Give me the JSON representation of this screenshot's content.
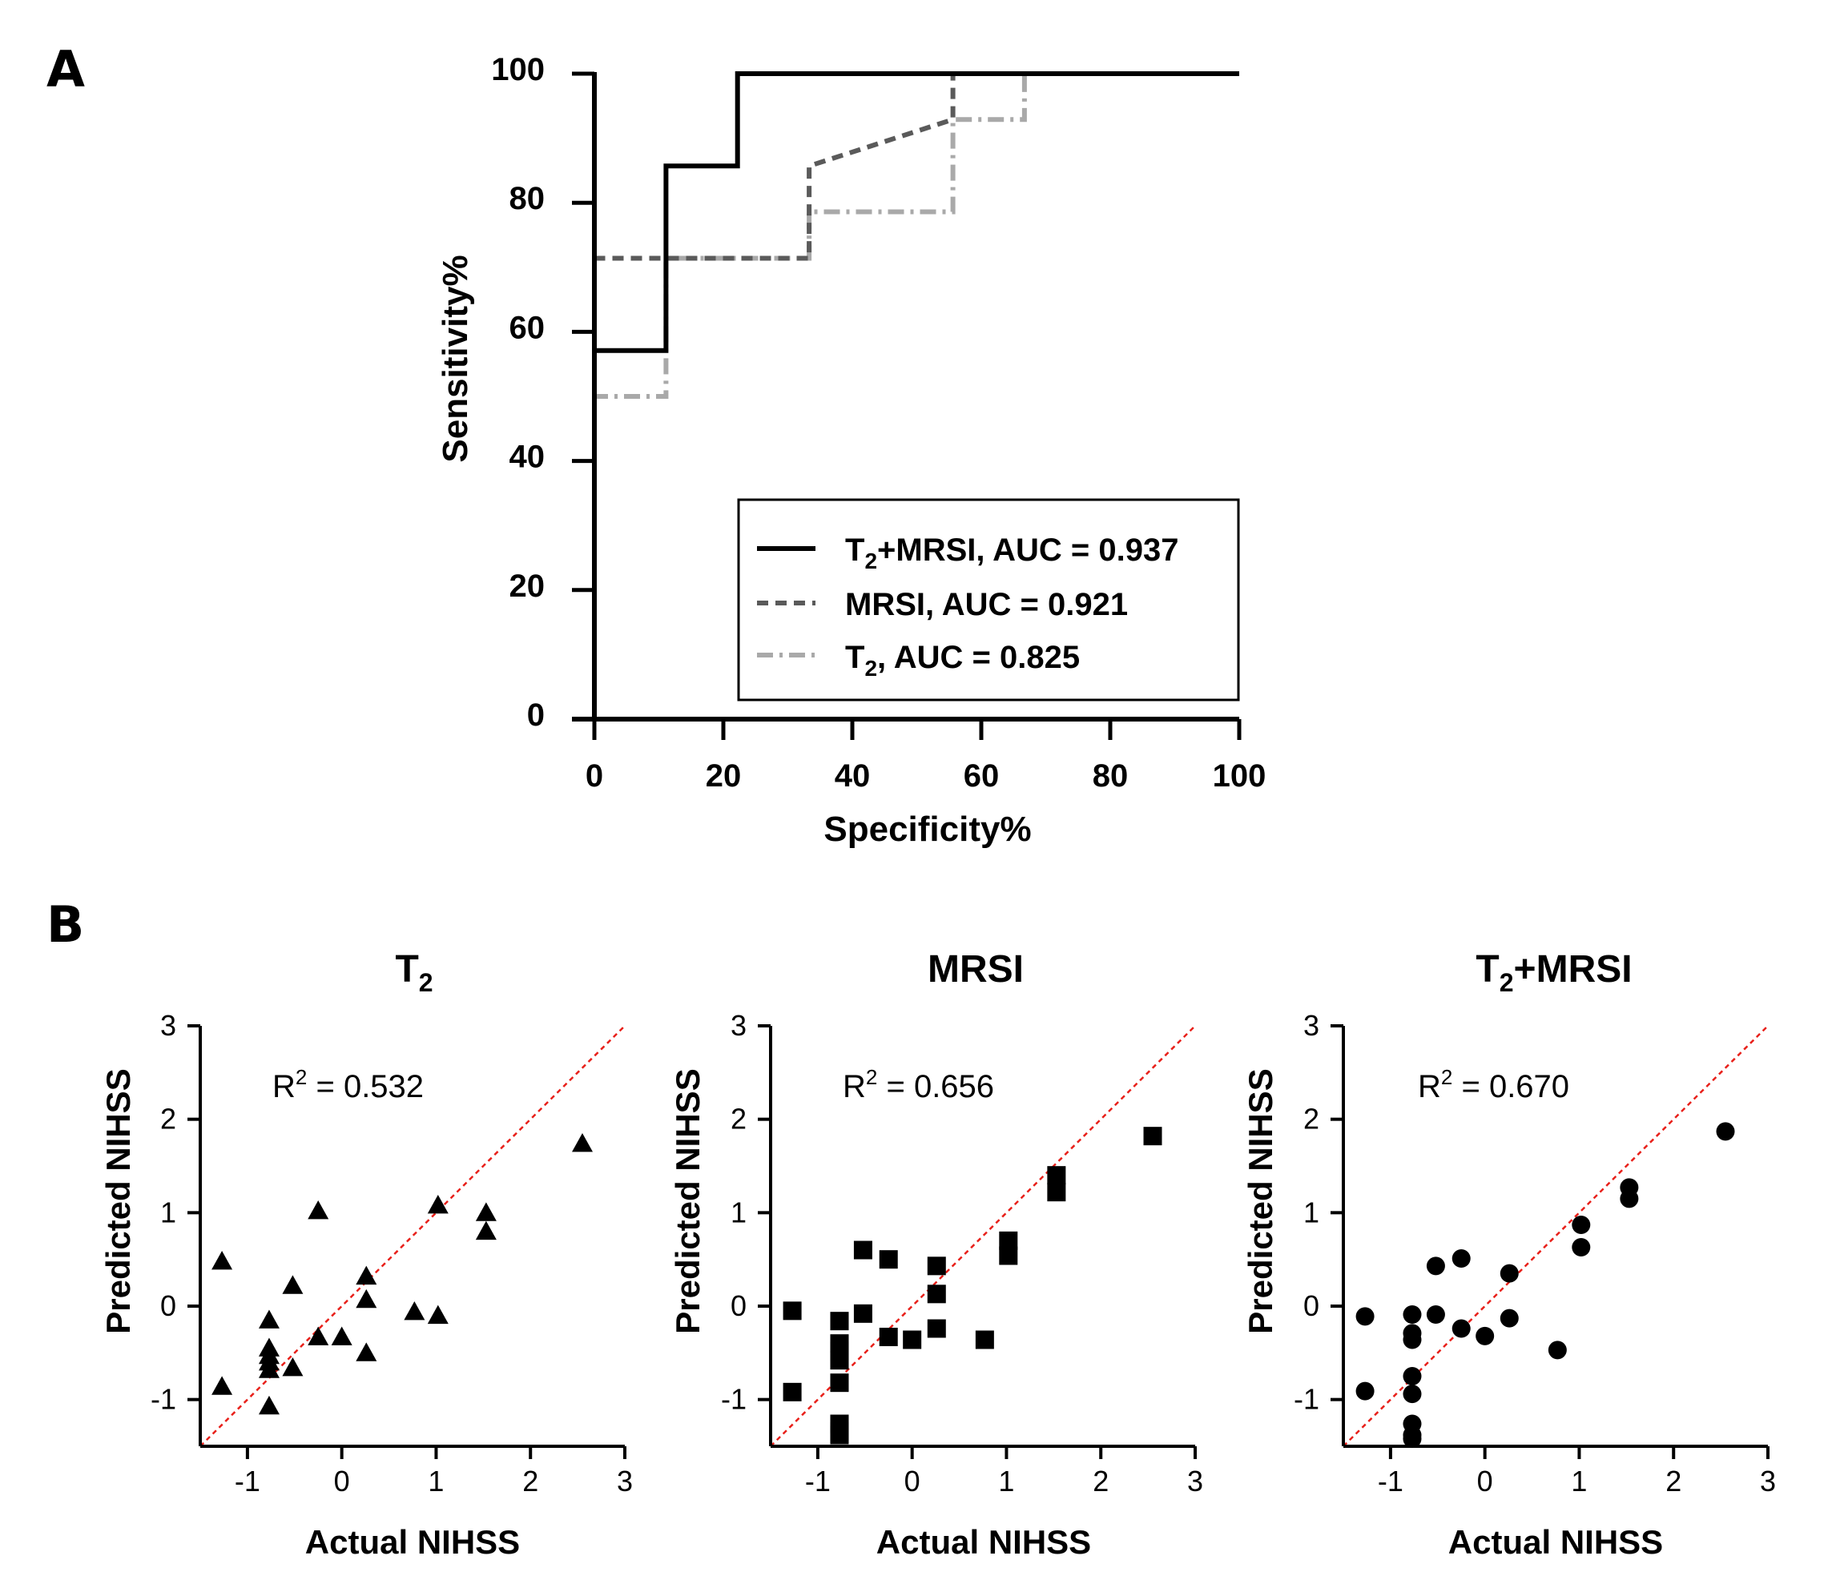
{
  "panel_labels": {
    "a": "A",
    "b": "B"
  },
  "roc_legend": {
    "series0": {
      "a": "T",
      "sub": "2",
      "b": "+MRSI, AUC = 0.937"
    },
    "series1": {
      "a": "MRSI, AUC = 0.921"
    },
    "series2": {
      "a": "T",
      "sub": "2",
      "b": ", AUC = 0.825"
    }
  },
  "scatter_titles": [
    {
      "a": "T",
      "sub": "2",
      "b": ""
    },
    {
      "a": "MRSI",
      "sub": "",
      "b": ""
    },
    {
      "a": "T",
      "sub": "2",
      "b": "+MRSI"
    }
  ],
  "r2_text": [
    {
      "a": "R",
      "sup": "2",
      "b": " = 0.532"
    },
    {
      "a": "R",
      "sup": "2",
      "b": " = 0.656"
    },
    {
      "a": "R",
      "sup": "2",
      "b": " = 0.670"
    }
  ],
  "chart_data": [
    {
      "type": "line",
      "panel": "A",
      "title": "",
      "xlabel": "Specificity%",
      "ylabel": "Sensitivity%",
      "xlim": [
        0,
        100
      ],
      "ylim": [
        0,
        100
      ],
      "xticks": [
        "0",
        "20",
        "40",
        "60",
        "80",
        "100"
      ],
      "yticks": [
        "0",
        "20",
        "40",
        "60",
        "80",
        "100"
      ],
      "legend_position": "bottom-right",
      "series": [
        {
          "name": "T2+MRSI, AUC = 0.937",
          "style": "solid",
          "color": "#000000",
          "x": [
            0,
            0,
            11.1,
            11.1,
            22.2,
            22.2,
            100
          ],
          "y": [
            0,
            57.1,
            57.1,
            85.7,
            85.7,
            100,
            100
          ]
        },
        {
          "name": "MRSI, AUC = 0.921",
          "style": "dashed",
          "color": "#5a5a5a",
          "x": [
            0,
            0,
            33.3,
            33.3,
            55.6,
            55.6
          ],
          "y": [
            0,
            71.4,
            71.4,
            85.7,
            92.9,
            100
          ]
        },
        {
          "name": "T2, AUC = 0.825",
          "style": "dash-dot",
          "color": "#a9a9a9",
          "x": [
            0,
            0,
            11.1,
            11.1,
            33.3,
            33.3,
            55.6,
            55.6,
            66.7,
            66.7
          ],
          "y": [
            0,
            50,
            50,
            71.4,
            71.4,
            78.6,
            78.6,
            92.9,
            92.9,
            100
          ]
        }
      ]
    },
    {
      "type": "scatter",
      "panel": "B",
      "title": "T2",
      "xlabel": "Actual NIHSS",
      "ylabel": "Predicted NIHSS",
      "xlim": [
        -1.5,
        3
      ],
      "ylim": [
        -1.5,
        3
      ],
      "xticks": [
        "-1",
        "0",
        "1",
        "2",
        "3"
      ],
      "yticks": [
        "-1",
        "0",
        "1",
        "2",
        "3"
      ],
      "marker": "triangle",
      "annotation": "R2 = 0.532",
      "reference_line": "y = x (red dotted)",
      "x": [
        -1.27,
        -1.27,
        -0.77,
        -0.77,
        -0.77,
        -0.77,
        -0.77,
        -0.77,
        -0.52,
        -0.52,
        -0.25,
        -0.25,
        0.0,
        0.26,
        0.26,
        0.26,
        0.77,
        1.02,
        1.02,
        1.53,
        1.53,
        2.55
      ],
      "y": [
        0.48,
        -0.86,
        -0.15,
        -0.45,
        -0.53,
        -0.6,
        -0.68,
        -1.07,
        0.22,
        -0.66,
        1.02,
        -0.33,
        -0.33,
        0.32,
        0.07,
        -0.5,
        -0.06,
        1.08,
        -0.1,
        1.0,
        0.8,
        1.74
      ]
    },
    {
      "type": "scatter",
      "panel": "B",
      "title": "MRSI",
      "xlabel": "Actual NIHSS",
      "ylabel": "Predicted NIHSS",
      "xlim": [
        -1.5,
        3
      ],
      "ylim": [
        -1.5,
        3
      ],
      "xticks": [
        "-1",
        "0",
        "1",
        "2",
        "3"
      ],
      "yticks": [
        "-1",
        "0",
        "1",
        "2",
        "3"
      ],
      "marker": "square",
      "annotation": "R2 = 0.656",
      "reference_line": "y = x (red dotted)",
      "x": [
        -1.27,
        -1.27,
        -0.77,
        -0.77,
        -0.77,
        -0.77,
        -0.77,
        -0.77,
        -0.77,
        -0.77,
        -0.52,
        -0.52,
        -0.25,
        -0.25,
        0.0,
        0.26,
        0.26,
        0.26,
        0.77,
        1.02,
        1.02,
        1.53,
        1.53,
        2.55
      ],
      "y": [
        -0.05,
        -0.92,
        -0.16,
        -0.4,
        -0.48,
        -0.58,
        -0.82,
        -1.26,
        -1.34,
        -1.38,
        0.6,
        -0.08,
        0.5,
        -0.33,
        -0.36,
        0.43,
        0.13,
        -0.24,
        -0.36,
        0.7,
        0.54,
        1.4,
        1.22,
        1.82
      ]
    },
    {
      "type": "scatter",
      "panel": "B",
      "title": "T2+MRSI",
      "xlabel": "Actual NIHSS",
      "ylabel": "Predicted NIHSS",
      "xlim": [
        -1.5,
        3
      ],
      "ylim": [
        -1.5,
        3
      ],
      "xticks": [
        "-1",
        "0",
        "1",
        "2",
        "3"
      ],
      "yticks": [
        "-1",
        "0",
        "1",
        "2",
        "3"
      ],
      "marker": "circle",
      "annotation": "R2 = 0.670",
      "reference_line": "y = x (red dotted)",
      "x": [
        -1.27,
        -1.27,
        -0.77,
        -0.77,
        -0.77,
        -0.77,
        -0.77,
        -0.77,
        -0.77,
        -0.77,
        -0.52,
        -0.52,
        -0.25,
        -0.25,
        0.0,
        0.26,
        0.26,
        0.77,
        1.02,
        1.02,
        1.53,
        1.53,
        2.55
      ],
      "y": [
        -0.11,
        -0.91,
        -0.09,
        -0.29,
        -0.36,
        -0.75,
        -0.94,
        -1.26,
        -1.38,
        -1.42,
        0.43,
        -0.09,
        0.51,
        -0.24,
        -0.32,
        0.35,
        -0.13,
        -0.47,
        0.87,
        0.63,
        1.27,
        1.15,
        1.87
      ]
    }
  ]
}
